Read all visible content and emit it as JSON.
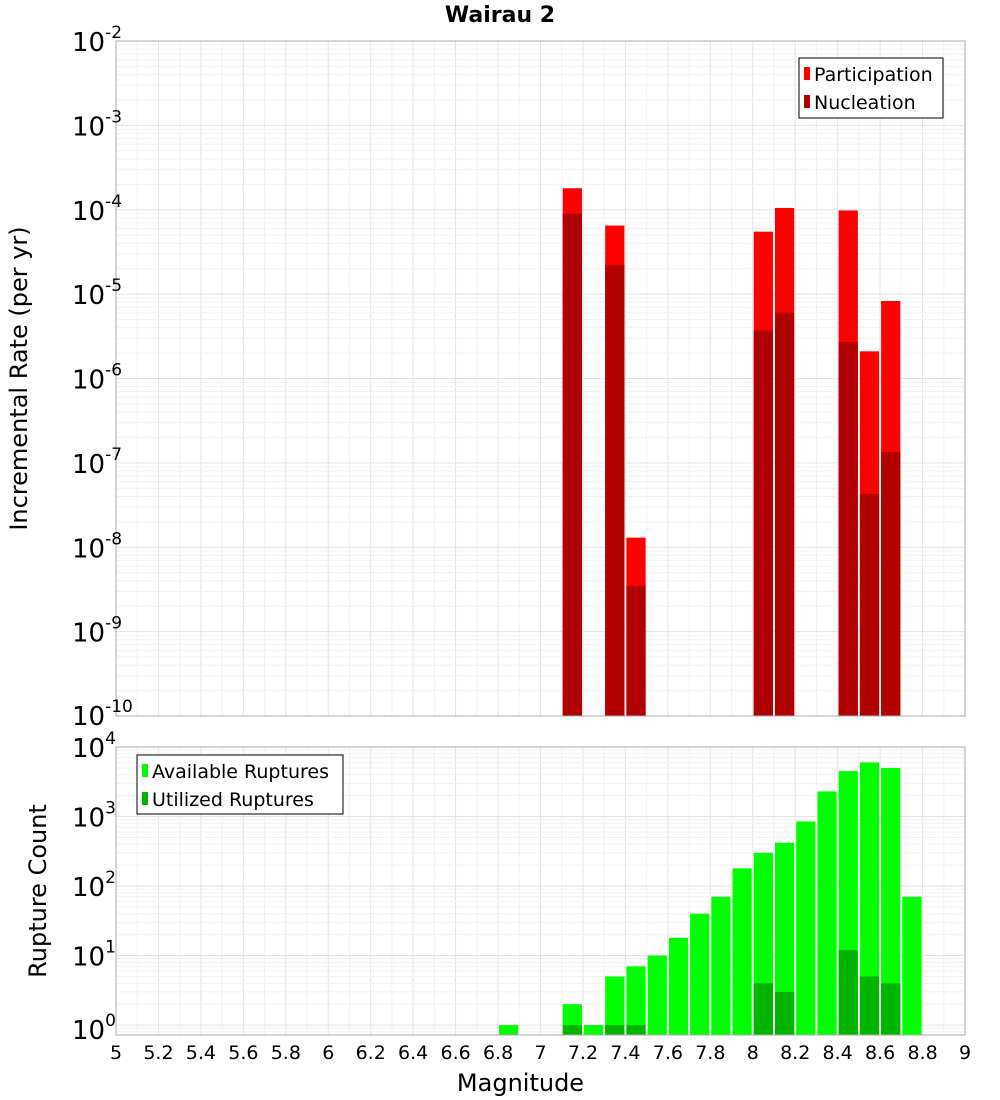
{
  "title": "Wairau 2",
  "chart_data": [
    {
      "type": "bar",
      "ylabel": "Incremental Rate (per yr)",
      "yscale": "log",
      "ylim": [
        1e-10,
        0.01
      ],
      "y_ticks": [
        {
          "base": "10",
          "exp": "-2"
        },
        {
          "base": "10",
          "exp": "-3"
        },
        {
          "base": "10",
          "exp": "-4"
        },
        {
          "base": "10",
          "exp": "-5"
        },
        {
          "base": "10",
          "exp": "-6"
        },
        {
          "base": "10",
          "exp": "-7"
        },
        {
          "base": "10",
          "exp": "-8"
        },
        {
          "base": "10",
          "exp": "-9"
        },
        {
          "base": "10",
          "exp": "-10"
        }
      ],
      "xlim": [
        5,
        9
      ],
      "bin_width": 0.1,
      "legend_position": "top-right",
      "series": [
        {
          "name": "Participation",
          "color": "#ff0000",
          "points": [
            {
              "x": 7.15,
              "y": 0.00018
            },
            {
              "x": 7.35,
              "y": 6.5e-05
            },
            {
              "x": 7.45,
              "y": 1.3e-08
            },
            {
              "x": 8.05,
              "y": 5.5e-05
            },
            {
              "x": 8.15,
              "y": 0.000105
            },
            {
              "x": 8.45,
              "y": 9.8e-05
            },
            {
              "x": 8.55,
              "y": 2.1e-06
            },
            {
              "x": 8.65,
              "y": 8.3e-06
            }
          ]
        },
        {
          "name": "Nucleation",
          "color": "#b00000",
          "points": [
            {
              "x": 7.15,
              "y": 9e-05
            },
            {
              "x": 7.35,
              "y": 2.2e-05
            },
            {
              "x": 7.45,
              "y": 3.5e-09
            },
            {
              "x": 8.05,
              "y": 3.7e-06
            },
            {
              "x": 8.15,
              "y": 6e-06
            },
            {
              "x": 8.45,
              "y": 2.7e-06
            },
            {
              "x": 8.55,
              "y": 4.3e-08
            },
            {
              "x": 8.65,
              "y": 1.35e-07
            }
          ]
        }
      ]
    },
    {
      "type": "bar",
      "xlabel": "Magnitude",
      "ylabel": "Rupture Count",
      "yscale": "log",
      "ylim": [
        0.7,
        10000
      ],
      "y_ticks": [
        {
          "value": 10000,
          "base": "10",
          "exp": "4"
        },
        {
          "value": 1000,
          "base": "10",
          "exp": "3"
        },
        {
          "value": 100,
          "base": "10",
          "exp": "2"
        },
        {
          "value": 10,
          "base": "10",
          "exp": "1"
        },
        {
          "value": 1,
          "base": "10",
          "exp": "0"
        }
      ],
      "xlim": [
        5,
        9
      ],
      "x_ticks": [
        "5",
        "5.2",
        "5.4",
        "5.6",
        "5.8",
        "6",
        "6.2",
        "6.4",
        "6.6",
        "6.8",
        "7",
        "7.2",
        "7.4",
        "7.6",
        "7.8",
        "8",
        "8.2",
        "8.4",
        "8.6",
        "8.8",
        "9"
      ],
      "bin_width": 0.1,
      "legend_position": "top-left",
      "series": [
        {
          "name": "Available Ruptures",
          "color": "#00ff00",
          "points": [
            {
              "x": 6.85,
              "y": 1
            },
            {
              "x": 7.15,
              "y": 2
            },
            {
              "x": 7.25,
              "y": 1
            },
            {
              "x": 7.35,
              "y": 5
            },
            {
              "x": 7.45,
              "y": 7
            },
            {
              "x": 7.55,
              "y": 10
            },
            {
              "x": 7.65,
              "y": 18
            },
            {
              "x": 7.75,
              "y": 40
            },
            {
              "x": 7.85,
              "y": 70
            },
            {
              "x": 7.95,
              "y": 180
            },
            {
              "x": 8.05,
              "y": 300
            },
            {
              "x": 8.15,
              "y": 420
            },
            {
              "x": 8.25,
              "y": 850
            },
            {
              "x": 8.35,
              "y": 2300
            },
            {
              "x": 8.45,
              "y": 4500
            },
            {
              "x": 8.55,
              "y": 6000
            },
            {
              "x": 8.65,
              "y": 5000
            },
            {
              "x": 8.75,
              "y": 70
            }
          ]
        },
        {
          "name": "Utilized Ruptures",
          "color": "#00b400",
          "points": [
            {
              "x": 7.15,
              "y": 1
            },
            {
              "x": 7.35,
              "y": 1
            },
            {
              "x": 7.45,
              "y": 1
            },
            {
              "x": 8.05,
              "y": 4
            },
            {
              "x": 8.15,
              "y": 3
            },
            {
              "x": 8.45,
              "y": 12
            },
            {
              "x": 8.55,
              "y": 5
            },
            {
              "x": 8.65,
              "y": 4
            }
          ]
        }
      ]
    }
  ]
}
